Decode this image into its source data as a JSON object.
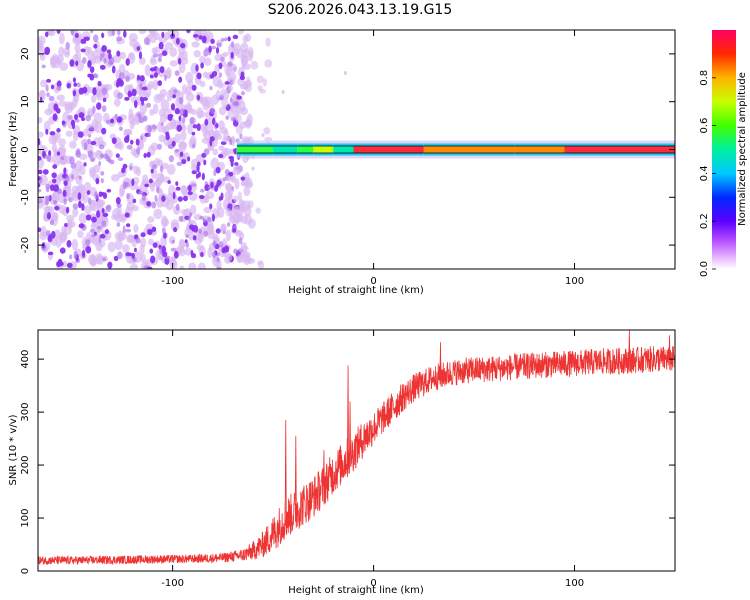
{
  "figure_title": "S206.2026.043.13.19.G15",
  "colors": {
    "snr_line": "#ee3333",
    "scatter_dot": "#8833ee",
    "scatter_halo": "#d8b8f2",
    "axis": "#000000"
  },
  "chart_data": [
    {
      "type": "heatmap",
      "title": "",
      "xlabel": "Height of straight line (km)",
      "ylabel": "Frequency (Hz)",
      "xlim": [
        -167,
        150
      ],
      "ylim": [
        -25,
        25
      ],
      "xticks": [
        -100,
        0,
        100
      ],
      "xtick_labels": [
        "-100",
        "0",
        "100"
      ],
      "yticks": [
        -20,
        -10,
        0,
        10,
        20
      ],
      "ytick_labels": [
        "-20",
        "-10",
        "0",
        "10",
        "20"
      ],
      "noise_region_km": [
        -167,
        -55
      ],
      "signal_band": {
        "frequency_hz": 0,
        "start_km": -68,
        "end_km": 150,
        "segments": [
          {
            "x0": -68,
            "x1": -50,
            "peak": 0.55
          },
          {
            "x0": -50,
            "x1": -38,
            "peak": 0.45
          },
          {
            "x0": -38,
            "x1": -30,
            "peak": 0.6
          },
          {
            "x0": -30,
            "x1": -20,
            "peak": 0.8
          },
          {
            "x0": -20,
            "x1": -10,
            "peak": 0.5
          },
          {
            "x0": -10,
            "x1": 25,
            "peak": 0.95
          },
          {
            "x0": 25,
            "x1": 70,
            "peak": 0.9
          },
          {
            "x0": 70,
            "x1": 95,
            "peak": 0.85
          },
          {
            "x0": 95,
            "x1": 150,
            "peak": 1.0
          }
        ]
      },
      "colorbar": {
        "label": "Normalized spectral amplitude",
        "range": [
          0,
          1
        ],
        "ticks": [
          0,
          0.2,
          0.4,
          0.6,
          0.8
        ],
        "tick_labels": [
          "0.0",
          "0.2",
          "0.4",
          "0.6",
          "0.8"
        ]
      }
    },
    {
      "type": "line",
      "title": "",
      "xlabel": "Height of straight line (km)",
      "ylabel": "SNR (10 * v/v)",
      "xlim": [
        -167,
        150
      ],
      "ylim": [
        0,
        455
      ],
      "xticks": [
        -100,
        0,
        100
      ],
      "xtick_labels": [
        "-100",
        "0",
        "100"
      ],
      "yticks": [
        0,
        100,
        200,
        300,
        400
      ],
      "ytick_labels": [
        "0",
        "100",
        "200",
        "300",
        "400"
      ],
      "series": [
        {
          "name": "SNR",
          "x": [
            -167,
            -150,
            -130,
            -110,
            -90,
            -75,
            -65,
            -60,
            -55,
            -50,
            -45,
            -40,
            -35,
            -30,
            -25,
            -20,
            -15,
            -10,
            -5,
            0,
            5,
            10,
            15,
            20,
            25,
            30,
            40,
            50,
            60,
            70,
            80,
            90,
            100,
            110,
            120,
            130,
            140,
            150
          ],
          "y": [
            20,
            20,
            21,
            22,
            23,
            25,
            30,
            38,
            50,
            70,
            95,
            110,
            125,
            140,
            160,
            185,
            205,
            225,
            250,
            270,
            290,
            310,
            330,
            345,
            355,
            365,
            375,
            380,
            382,
            385,
            388,
            390,
            392,
            395,
            396,
            398,
            400,
            400
          ],
          "noise_amplitude": [
            8,
            8,
            8,
            8,
            8,
            9,
            12,
            18,
            25,
            35,
            40,
            40,
            40,
            40,
            40,
            40,
            40,
            38,
            35,
            32,
            30,
            30,
            28,
            27,
            26,
            25,
            25,
            25,
            25,
            25,
            25,
            25,
            25,
            25,
            25,
            25,
            25,
            25
          ],
          "spikes": [
            {
              "x": -44,
              "y": 285
            },
            {
              "x": -39,
              "y": 255
            },
            {
              "x": -25,
              "y": 228
            },
            {
              "x": -13,
              "y": 388
            },
            {
              "x": -12,
              "y": 320
            },
            {
              "x": 33,
              "y": 432
            },
            {
              "x": 127,
              "y": 455
            },
            {
              "x": 147,
              "y": 445
            }
          ]
        }
      ]
    }
  ]
}
